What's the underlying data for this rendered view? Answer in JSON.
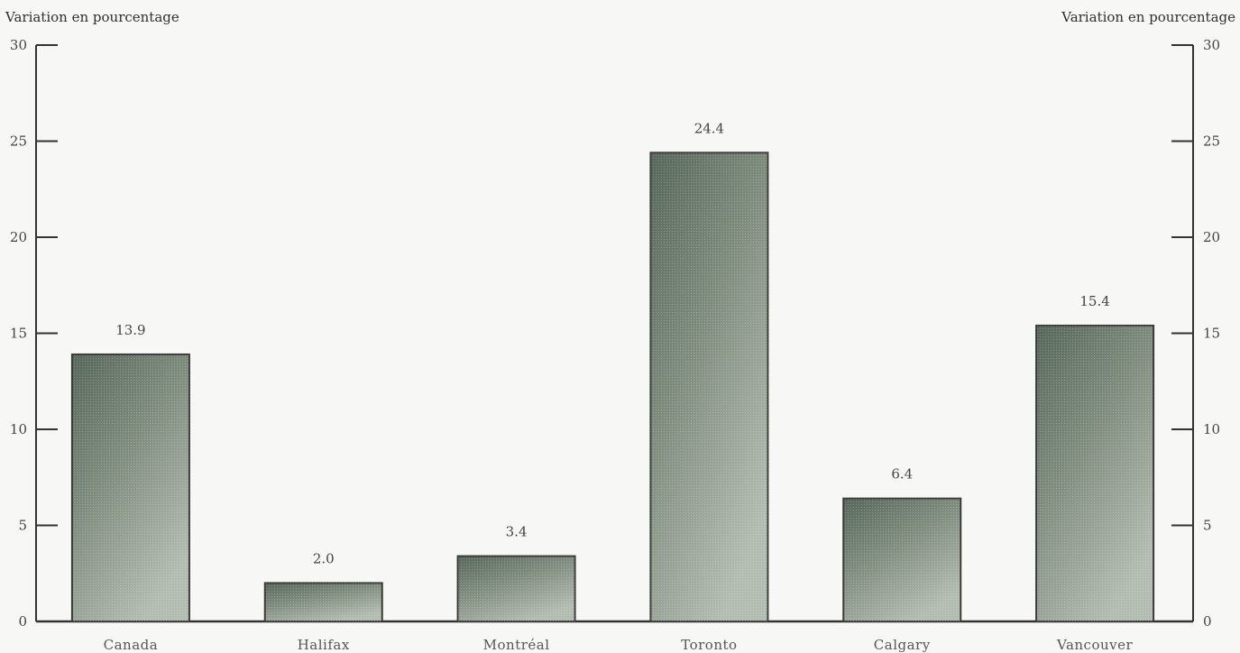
{
  "chart_data": {
    "type": "bar",
    "title": "",
    "ylabel_left": "Variation en pourcentage",
    "ylabel_right": "Variation en pourcentage",
    "categories": [
      "Canada",
      "Halifax",
      "Montréal",
      "Toronto",
      "Calgary",
      "Vancouver"
    ],
    "values": [
      13.9,
      2.0,
      3.4,
      24.4,
      6.4,
      15.4
    ],
    "data_labels": [
      "13.9",
      "2.0",
      "3.4",
      "24.4",
      "6.4",
      "15.4"
    ],
    "ylim": [
      0,
      30
    ],
    "yticks": [
      0,
      5,
      10,
      15,
      20,
      25,
      30
    ],
    "grid": false,
    "legend": "none",
    "colors": {
      "bar_top": "#5f6f5f",
      "bar_mid": "#7e8d7e",
      "bar_light": "#b9c2b7",
      "axis": "#333333"
    }
  }
}
